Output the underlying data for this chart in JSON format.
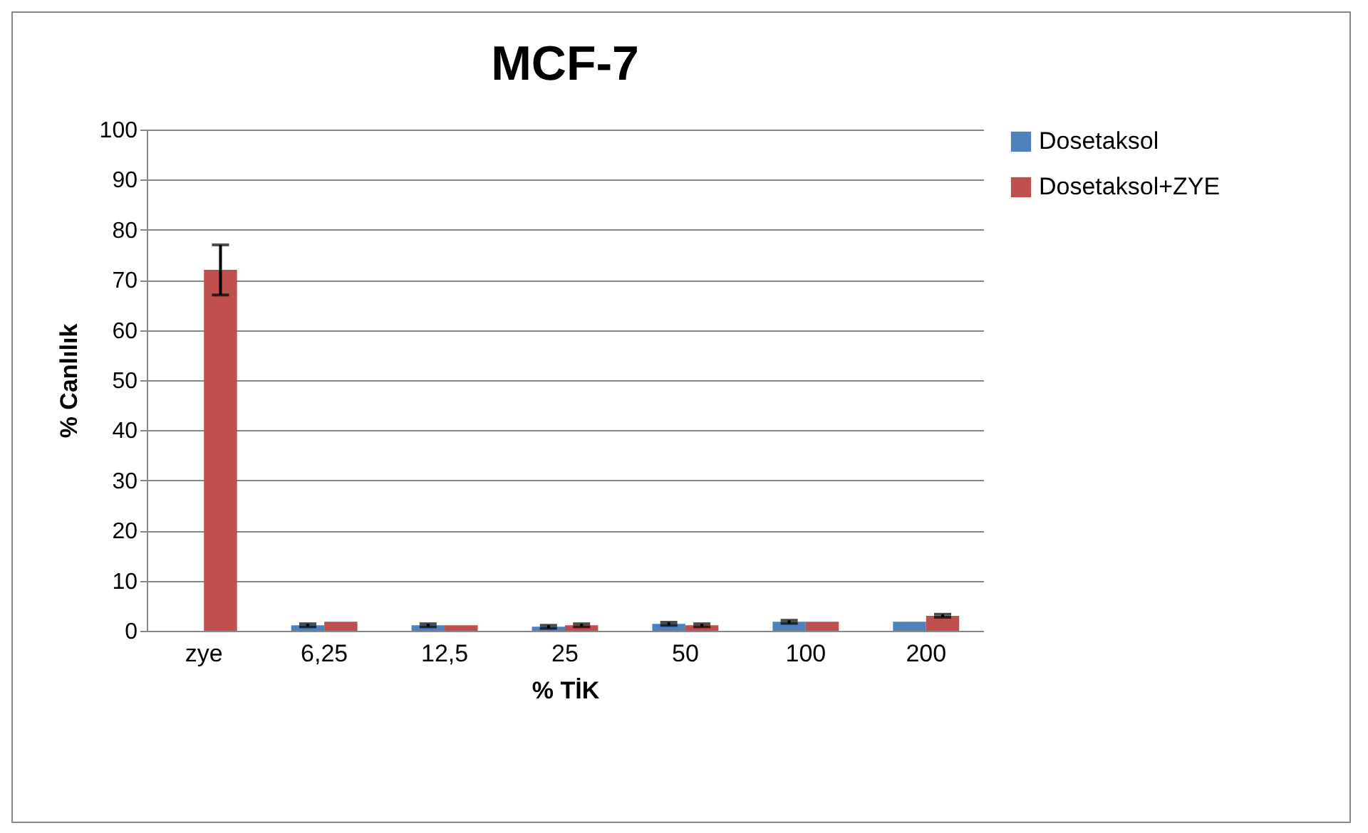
{
  "chart_data": {
    "type": "bar",
    "title": "MCF-7",
    "xlabel": "% TİK",
    "ylabel": "% Canlılık",
    "categories": [
      "zye",
      "6,25",
      "12,5",
      "25",
      "50",
      "100",
      "200"
    ],
    "series": [
      {
        "name": "Dosetaksol",
        "color": "#4f81bd",
        "values": [
          null,
          1.1,
          1.1,
          0.8,
          1.4,
          1.8,
          1.8
        ],
        "errors": [
          null,
          0.3,
          0.3,
          0.3,
          0.3,
          0.3,
          null
        ]
      },
      {
        "name": "Dosetaksol+ZYE",
        "color": "#c0504d",
        "values": [
          72,
          1.8,
          1.1,
          1.1,
          1.1,
          1.8,
          3.0
        ],
        "errors": [
          5,
          null,
          null,
          0.3,
          0.3,
          null,
          0.3
        ]
      }
    ],
    "ylim": [
      0,
      100
    ],
    "yticks": [
      0,
      10,
      20,
      30,
      40,
      50,
      60,
      70,
      80,
      90,
      100
    ],
    "grid": "y",
    "legend": "right"
  }
}
